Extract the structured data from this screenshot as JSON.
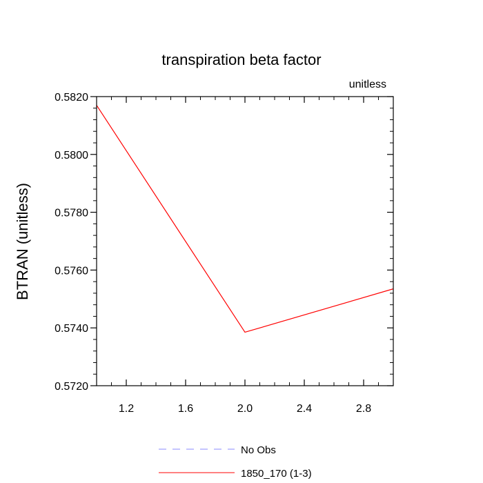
{
  "chart_data": {
    "type": "line",
    "title": "transpiration beta factor",
    "units_label": "unitless",
    "ylabel": "BTRAN  (unitless)",
    "xlabel": "",
    "xlim": [
      1.0,
      3.0
    ],
    "ylim": [
      0.572,
      0.582
    ],
    "x_ticks": [
      1.2,
      1.6,
      2.0,
      2.4,
      2.8
    ],
    "x_tick_labels": [
      "1.2",
      "1.6",
      "2.0",
      "2.4",
      "2.8"
    ],
    "y_ticks": [
      0.572,
      0.574,
      0.576,
      0.578,
      0.58,
      0.582
    ],
    "y_tick_labels": [
      "0.5720",
      "0.5740",
      "0.5760",
      "0.5780",
      "0.5800",
      "0.5820"
    ],
    "grid": false,
    "legend_position": "bottom",
    "series": [
      {
        "name": "1850_170 (1-3)",
        "color": "#ff0000",
        "dash": "solid",
        "x": [
          1.0,
          2.0,
          3.0
        ],
        "y": [
          0.5817,
          0.57385,
          0.57535
        ]
      }
    ],
    "legend": [
      {
        "label": "No Obs",
        "color": "#8888ff",
        "dash": "dashed"
      },
      {
        "label": "1850_170 (1-3)",
        "color": "#ff0000",
        "dash": "solid"
      }
    ]
  }
}
